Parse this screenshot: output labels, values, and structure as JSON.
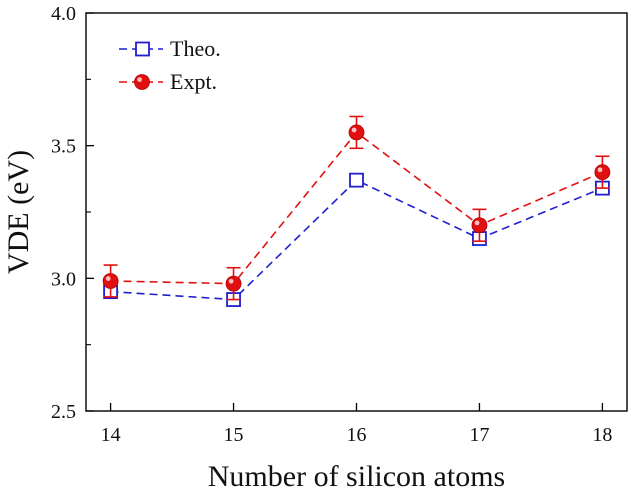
{
  "chart_data": {
    "type": "line",
    "title": "",
    "xlabel": "Number of silicon atoms",
    "ylabel": "VDE (eV)",
    "categories": [
      "14",
      "15",
      "16",
      "17",
      "18"
    ],
    "x": [
      14,
      15,
      16,
      17,
      18
    ],
    "xlim": [
      13.8,
      18.2
    ],
    "ylim": [
      2.5,
      4.0
    ],
    "y_ticks": [
      2.5,
      3.0,
      3.5,
      4.0
    ],
    "y_tick_labels": [
      "2.5",
      "3.0",
      "3.5",
      "4.0"
    ],
    "legend_position": "top-left",
    "grid": false,
    "series": [
      {
        "name": "Theo.",
        "values": [
          2.95,
          2.92,
          3.37,
          3.15,
          3.34
        ],
        "marker": "open-square",
        "line_style": "dashed",
        "color": "#1f1fcf"
      },
      {
        "name": "Expt.",
        "values": [
          2.99,
          2.98,
          3.55,
          3.2,
          3.4
        ],
        "errors": [
          0.06,
          0.06,
          0.06,
          0.06,
          0.06
        ],
        "marker": "filled-circle",
        "line_style": "dashed",
        "color": "#e01010"
      }
    ]
  }
}
